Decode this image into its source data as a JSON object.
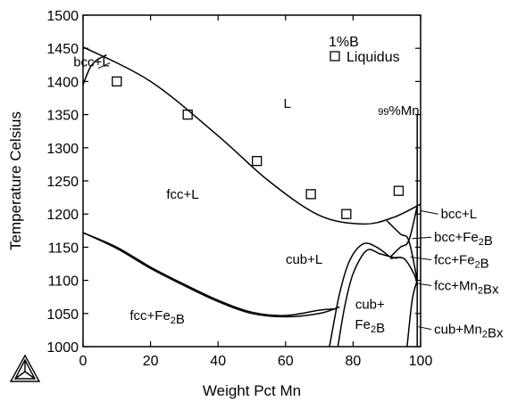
{
  "chart_data": {
    "type": "scatter",
    "xlabel": "Weight Pct Mn",
    "ylabel": "Temperature Celsius",
    "xlim": [
      0,
      100
    ],
    "ylim": [
      1000,
      1500
    ],
    "xticks": [
      "0",
      "20",
      "40",
      "60",
      "80",
      "100"
    ],
    "yticks": [
      "1000",
      "1050",
      "1100",
      "1150",
      "1200",
      "1250",
      "1300",
      "1350",
      "1400",
      "1450",
      "1500"
    ],
    "grid": false,
    "legend": {
      "title": "1%B",
      "entries": [
        {
          "label": "Liquidus",
          "marker": "open-square"
        }
      ],
      "placement": "top-right"
    },
    "series": [
      {
        "name": "Liquidus",
        "marker": "open-square",
        "points": [
          [
            10,
            1400
          ],
          [
            31,
            1350
          ],
          [
            51.5,
            1280
          ],
          [
            67.5,
            1230
          ],
          [
            78,
            1200
          ],
          [
            93.5,
            1235
          ]
        ]
      }
    ],
    "phase_boundaries": [
      {
        "points": [
          [
            0,
            1452
          ],
          [
            20,
            1400
          ],
          [
            40,
            1318
          ],
          [
            55,
            1250
          ],
          [
            70,
            1198
          ],
          [
            83,
            1185
          ],
          [
            92,
            1195
          ],
          [
            100,
            1215
          ]
        ]
      },
      {
        "points": [
          [
            0,
            1395
          ],
          [
            2,
            1420
          ],
          [
            4,
            1432
          ],
          [
            7,
            1440
          ]
        ]
      },
      {
        "points": [
          [
            0,
            1172
          ],
          [
            10,
            1148
          ],
          [
            20,
            1118
          ],
          [
            30,
            1092
          ],
          [
            40,
            1068
          ],
          [
            50,
            1050
          ],
          [
            60,
            1045
          ],
          [
            70,
            1050
          ],
          [
            76,
            1060
          ]
        ]
      },
      {
        "points": [
          [
            0,
            1172
          ],
          [
            10,
            1150
          ],
          [
            20,
            1120
          ],
          [
            30,
            1094
          ],
          [
            40,
            1070
          ],
          [
            50,
            1052
          ],
          [
            60,
            1047
          ],
          [
            70,
            1055
          ],
          [
            75,
            1057
          ]
        ]
      },
      {
        "points": [
          [
            73,
            1000
          ],
          [
            76,
            1080
          ],
          [
            79,
            1130
          ],
          [
            83,
            1155
          ],
          [
            87,
            1150
          ],
          [
            91,
            1135
          ]
        ]
      },
      {
        "points": [
          [
            75.5,
            1000
          ],
          [
            77.5,
            1060
          ],
          [
            80,
            1110
          ],
          [
            84,
            1145
          ],
          [
            88,
            1140
          ],
          [
            93,
            1133
          ]
        ]
      },
      {
        "points": [
          [
            91,
            1133
          ],
          [
            95,
            1133
          ],
          [
            98,
            1110
          ],
          [
            99,
            1095
          ]
        ]
      },
      {
        "points": [
          [
            90,
            1190
          ],
          [
            94,
            1170
          ],
          [
            96.5,
            1160
          ],
          [
            99,
            1100
          ]
        ]
      },
      {
        "points": [
          [
            91,
            1135
          ],
          [
            94,
            1150
          ],
          [
            96.5,
            1160
          ],
          [
            99,
            1212
          ]
        ]
      },
      {
        "points": [
          [
            96,
            1000
          ],
          [
            97.5,
            1070
          ],
          [
            99,
            1100
          ]
        ]
      },
      {
        "points": [
          [
            99,
            1000
          ],
          [
            99,
            1350
          ]
        ]
      }
    ],
    "region_labels": [
      {
        "text": "L",
        "x": 60.5,
        "y": 1360
      },
      {
        "text": "fcc+L",
        "x": 29.5,
        "y": 1223
      },
      {
        "text": "fcc+",
        "sub": "Fe2B",
        "x": 22,
        "y": 1040
      },
      {
        "text": "cub+L",
        "x": 65.5,
        "y": 1125
      },
      {
        "text": "cub+",
        "x": 85,
        "y": 1057
      },
      {
        "text": "Fe2B",
        "x": 85,
        "y": 1027
      },
      {
        "text": "99%Mn",
        "x": 93.5,
        "y": 1355
      },
      {
        "text": "bcc+L",
        "x": 2.5,
        "y": 1423
      }
    ],
    "annotations": [
      {
        "text": "bcc+L",
        "x": 106,
        "y": 1200,
        "arrow_to": [
          100,
          1205
        ]
      },
      {
        "text": "bcc+Fe2B",
        "x": 104,
        "y": 1165,
        "arrow_to": [
          97.5,
          1163
        ]
      },
      {
        "text": "fcc+Fe2B",
        "x": 104,
        "y": 1131,
        "arrow_to": [
          97,
          1135
        ]
      },
      {
        "text": "fcc+Mn2Bx",
        "x": 104,
        "y": 1092,
        "arrow_to": [
          99.3,
          1095
        ]
      },
      {
        "text": "cub+Mn2Bx",
        "x": 104,
        "y": 1026,
        "arrow_to": [
          99.3,
          1030
        ]
      }
    ],
    "colors": {
      "lines": "#000000",
      "background": "#ffffff"
    },
    "logo": "thermo-calc-triangle-logo"
  }
}
